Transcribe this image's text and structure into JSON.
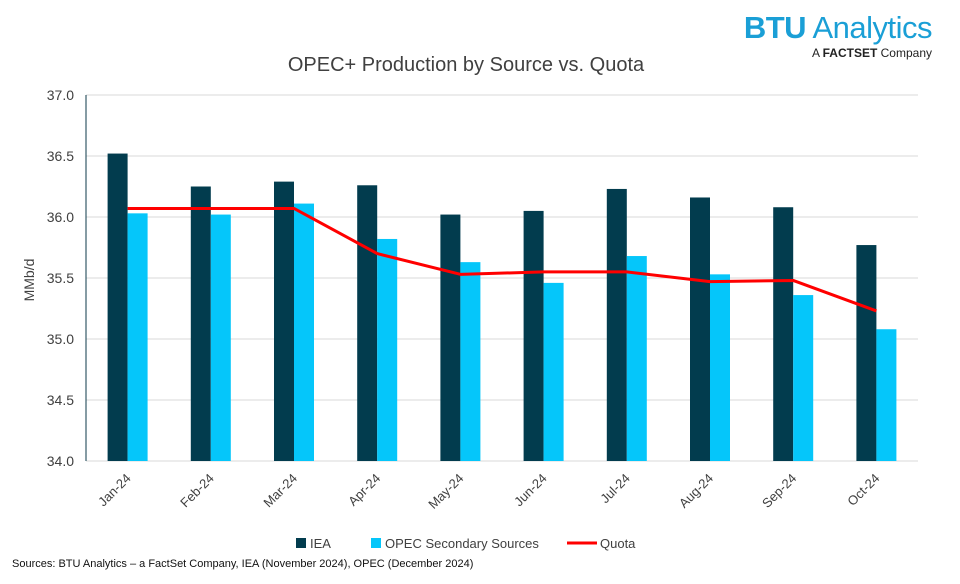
{
  "logo": {
    "brand_bold": "BTU",
    "brand_rest": " Analytics",
    "sub_prefix": "A ",
    "sub_bold": "FACTSET",
    "sub_rest": " Company"
  },
  "source": "Sources: BTU Analytics – a FactSet Company, IEA (November 2024), OPEC (December 2024)",
  "colors": {
    "iea": "#023c4e",
    "opec": "#05c6fa",
    "quota": "#ff0000",
    "grid": "#d9d9d9"
  },
  "chart_data": {
    "type": "bar",
    "title": "OPEC+ Production by Source vs. Quota",
    "ylabel": "MMb/d",
    "xlabel": "",
    "ylim": [
      34.0,
      37.0
    ],
    "yticks": [
      "34.0",
      "34.5",
      "35.0",
      "35.5",
      "36.0",
      "36.5",
      "37.0"
    ],
    "grid": true,
    "legend": "bottom",
    "categories": [
      "Jan-24",
      "Feb-24",
      "Mar-24",
      "Apr-24",
      "May-24",
      "Jun-24",
      "Jul-24",
      "Aug-24",
      "Sep-24",
      "Oct-24"
    ],
    "series": [
      {
        "name": "IEA",
        "type": "bar",
        "values": [
          36.52,
          36.25,
          36.29,
          36.26,
          36.02,
          36.05,
          36.23,
          36.16,
          36.08,
          35.77
        ]
      },
      {
        "name": "OPEC Secondary Sources",
        "type": "bar",
        "values": [
          36.03,
          36.02,
          36.11,
          35.82,
          35.63,
          35.46,
          35.68,
          35.53,
          35.36,
          35.08
        ]
      },
      {
        "name": "Quota",
        "type": "line",
        "values": [
          36.07,
          36.07,
          36.07,
          35.7,
          35.53,
          35.55,
          35.55,
          35.47,
          35.48,
          35.23
        ]
      }
    ]
  }
}
